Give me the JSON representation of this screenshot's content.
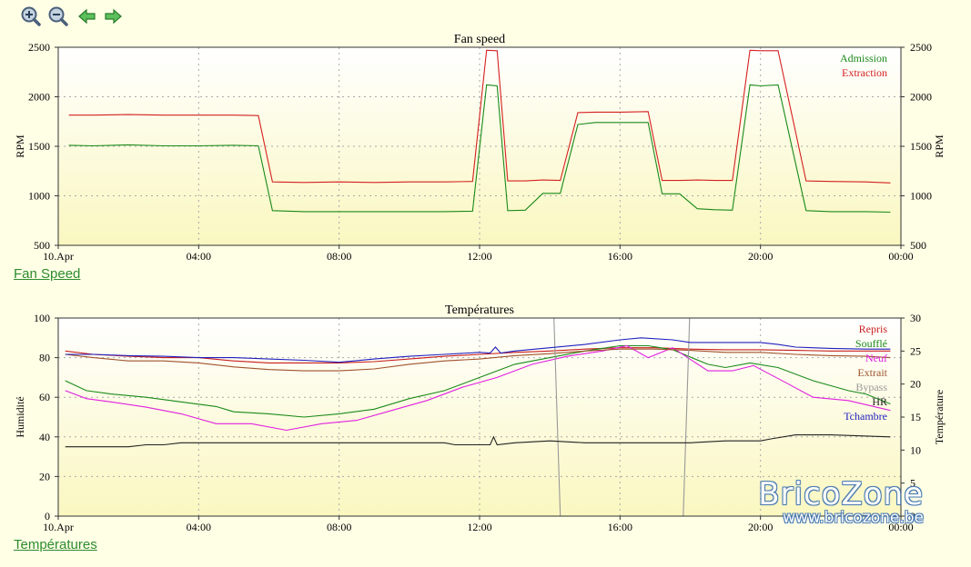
{
  "toolbar": {
    "icons": [
      "zoom-in-icon",
      "zoom-out-icon",
      "arrow-left-icon",
      "arrow-right-icon"
    ]
  },
  "links": {
    "fan_speed": "Fan Speed",
    "temperatures": "Températures"
  },
  "watermark": {
    "brand": "BricoZone",
    "url": "www.bricozone.be"
  },
  "colors": {
    "background": "#ffffe6",
    "plot_gradient_top": "#ffffff",
    "plot_gradient_bottom": "#faf7c0",
    "link": "#2e8b2e"
  },
  "chart_data": [
    {
      "type": "line",
      "title": "Fan speed",
      "xlabel": "",
      "ylabel": "RPM",
      "ylabel_right": "RPM",
      "xlim": [
        0,
        24
      ],
      "ylim": [
        500,
        2500
      ],
      "yticks": [
        500,
        1000,
        1500,
        2000,
        2500
      ],
      "xticks": [
        {
          "x": 0,
          "label": "10.Apr"
        },
        {
          "x": 4,
          "label": "04:00"
        },
        {
          "x": 8,
          "label": "08:00"
        },
        {
          "x": 12,
          "label": "12:00"
        },
        {
          "x": 16,
          "label": "16:00"
        },
        {
          "x": 20,
          "label": "20:00"
        },
        {
          "x": 24,
          "label": "00:00"
        }
      ],
      "grid": true,
      "legend_position": "top-right",
      "series": [
        {
          "name": "Admission",
          "color": "#1a8a1a",
          "points": [
            [
              0.3,
              1510
            ],
            [
              1,
              1505
            ],
            [
              2,
              1515
            ],
            [
              3,
              1505
            ],
            [
              4,
              1505
            ],
            [
              5,
              1510
            ],
            [
              5.7,
              1505
            ],
            [
              6.1,
              850
            ],
            [
              7,
              840
            ],
            [
              8,
              840
            ],
            [
              9,
              840
            ],
            [
              10,
              840
            ],
            [
              11,
              840
            ],
            [
              11.8,
              845
            ],
            [
              12.2,
              2120
            ],
            [
              12.5,
              2110
            ],
            [
              12.8,
              850
            ],
            [
              13.3,
              855
            ],
            [
              13.8,
              1025
            ],
            [
              14.3,
              1025
            ],
            [
              14.8,
              1720
            ],
            [
              15.3,
              1740
            ],
            [
              16,
              1740
            ],
            [
              16.8,
              1740
            ],
            [
              17.2,
              1020
            ],
            [
              17.7,
              1020
            ],
            [
              18.2,
              870
            ],
            [
              18.7,
              860
            ],
            [
              19.2,
              855
            ],
            [
              19.7,
              2120
            ],
            [
              20,
              2110
            ],
            [
              20.5,
              2120
            ],
            [
              21.3,
              850
            ],
            [
              22,
              840
            ],
            [
              23,
              840
            ],
            [
              23.7,
              835
            ]
          ]
        },
        {
          "name": "Extraction",
          "color": "#d42020",
          "points": [
            [
              0.3,
              1815
            ],
            [
              1,
              1815
            ],
            [
              2,
              1820
            ],
            [
              3,
              1815
            ],
            [
              4,
              1815
            ],
            [
              5,
              1815
            ],
            [
              5.7,
              1810
            ],
            [
              6.1,
              1140
            ],
            [
              7,
              1135
            ],
            [
              8,
              1140
            ],
            [
              9,
              1135
            ],
            [
              10,
              1140
            ],
            [
              11,
              1140
            ],
            [
              11.8,
              1145
            ],
            [
              12.2,
              2470
            ],
            [
              12.5,
              2465
            ],
            [
              12.8,
              1150
            ],
            [
              13.3,
              1150
            ],
            [
              13.8,
              1160
            ],
            [
              14.3,
              1155
            ],
            [
              14.8,
              1840
            ],
            [
              15.3,
              1845
            ],
            [
              16,
              1845
            ],
            [
              16.8,
              1850
            ],
            [
              17.2,
              1155
            ],
            [
              17.7,
              1155
            ],
            [
              18.2,
              1160
            ],
            [
              18.7,
              1155
            ],
            [
              19.2,
              1155
            ],
            [
              19.7,
              2470
            ],
            [
              20,
              2465
            ],
            [
              20.5,
              2465
            ],
            [
              21.3,
              1150
            ],
            [
              22,
              1145
            ],
            [
              23,
              1140
            ],
            [
              23.7,
              1130
            ]
          ]
        }
      ]
    },
    {
      "type": "line",
      "title": "Températures",
      "xlabel": "",
      "ylabel": "Humidité",
      "ylabel_right": "Température",
      "xlim": [
        0,
        24
      ],
      "ylim": [
        0,
        100
      ],
      "ylim_right": [
        0,
        30
      ],
      "yticks": [
        0,
        20,
        40,
        60,
        80,
        100
      ],
      "yticks_right": [
        0,
        5,
        10,
        15,
        20,
        25,
        30
      ],
      "xticks": [
        {
          "x": 0,
          "label": "10.Apr"
        },
        {
          "x": 4,
          "label": "04:00"
        },
        {
          "x": 8,
          "label": "08:00"
        },
        {
          "x": 12,
          "label": "12:00"
        },
        {
          "x": 16,
          "label": "16:00"
        },
        {
          "x": 20,
          "label": "20:00"
        },
        {
          "x": 24,
          "label": "00:00"
        }
      ],
      "grid": true,
      "legend_position": "top-right",
      "series": [
        {
          "name": "Repris",
          "color": "#c81e1e",
          "axis": "right",
          "points": [
            [
              0.2,
              25
            ],
            [
              1,
              24.5
            ],
            [
              2,
              24.2
            ],
            [
              3,
              24
            ],
            [
              4,
              24
            ],
            [
              5,
              23.5
            ],
            [
              6,
              23.2
            ],
            [
              7,
              23.2
            ],
            [
              8,
              23.2
            ],
            [
              9,
              23.4
            ],
            [
              10,
              23.8
            ],
            [
              11,
              24.2
            ],
            [
              12,
              24.5
            ],
            [
              13,
              24.8
            ],
            [
              14,
              25
            ],
            [
              15,
              25.3
            ],
            [
              16,
              25.5
            ],
            [
              17,
              25.5
            ],
            [
              18,
              25.3
            ],
            [
              19,
              25.2
            ],
            [
              20,
              25.2
            ],
            [
              21,
              25.1
            ],
            [
              22,
              25
            ],
            [
              23,
              25
            ],
            [
              23.7,
              25
            ]
          ]
        },
        {
          "name": "Soufflé",
          "color": "#1a8a1a",
          "axis": "right",
          "points": [
            [
              0.2,
              20.5
            ],
            [
              0.8,
              19
            ],
            [
              1.5,
              18.5
            ],
            [
              2.5,
              18
            ],
            [
              3.5,
              17.3
            ],
            [
              4.5,
              16.6
            ],
            [
              5,
              15.8
            ],
            [
              6,
              15.5
            ],
            [
              7,
              15
            ],
            [
              8,
              15.5
            ],
            [
              9,
              16.2
            ],
            [
              10,
              17.8
            ],
            [
              11,
              19
            ],
            [
              12,
              21
            ],
            [
              13,
              23
            ],
            [
              14,
              24
            ],
            [
              15,
              25
            ],
            [
              16,
              25.8
            ],
            [
              16.8,
              25.8
            ],
            [
              17.5,
              25.2
            ],
            [
              18.5,
              23
            ],
            [
              19,
              22.5
            ],
            [
              19.7,
              23.2
            ],
            [
              20.5,
              22.5
            ],
            [
              21.5,
              20.5
            ],
            [
              22.5,
              19
            ],
            [
              23,
              18.5
            ],
            [
              23.7,
              17
            ]
          ]
        },
        {
          "name": "Neuf",
          "color": "#e020e0",
          "axis": "right",
          "points": [
            [
              0.2,
              19
            ],
            [
              0.8,
              17.8
            ],
            [
              1.5,
              17.3
            ],
            [
              2.5,
              16.5
            ],
            [
              3.5,
              15.5
            ],
            [
              4.5,
              14
            ],
            [
              5.5,
              14
            ],
            [
              6.5,
              13
            ],
            [
              7.5,
              14
            ],
            [
              8.5,
              14.5
            ],
            [
              9.5,
              16
            ],
            [
              10.5,
              17.5
            ],
            [
              11.5,
              19.5
            ],
            [
              12.5,
              21
            ],
            [
              13.5,
              23
            ],
            [
              14.5,
              24.2
            ],
            [
              15.5,
              25
            ],
            [
              16.2,
              25.8
            ],
            [
              16.8,
              24
            ],
            [
              17.5,
              25.5
            ],
            [
              18.5,
              22
            ],
            [
              19.2,
              22
            ],
            [
              19.8,
              22.8
            ],
            [
              20.8,
              20
            ],
            [
              21.5,
              18
            ],
            [
              22.5,
              17.5
            ],
            [
              23.7,
              16
            ]
          ]
        },
        {
          "name": "Extrait",
          "color": "#a0522d",
          "axis": "right",
          "points": [
            [
              0.2,
              24.5
            ],
            [
              1,
              24
            ],
            [
              2,
              23.5
            ],
            [
              3,
              23.5
            ],
            [
              4,
              23.2
            ],
            [
              5,
              22.6
            ],
            [
              6,
              22.2
            ],
            [
              7,
              22
            ],
            [
              8,
              22
            ],
            [
              9,
              22.3
            ],
            [
              10,
              23
            ],
            [
              11,
              23.5
            ],
            [
              12,
              23.8
            ],
            [
              13,
              24.3
            ],
            [
              14,
              24.6
            ],
            [
              15,
              25
            ],
            [
              16,
              25.3
            ],
            [
              17,
              25.3
            ],
            [
              18,
              25.1
            ],
            [
              19,
              24.8
            ],
            [
              20,
              24.8
            ],
            [
              21,
              24.5
            ],
            [
              22,
              24.3
            ],
            [
              23,
              24.2
            ],
            [
              23.7,
              24
            ]
          ]
        },
        {
          "name": "Bypass",
          "color": "#999999",
          "axis": "left",
          "points": [
            [
              14.1,
              110
            ],
            [
              14.3,
              0
            ],
            [
              17.8,
              0
            ],
            [
              18.0,
              110
            ]
          ]
        },
        {
          "name": "HR",
          "color": "#222222",
          "axis": "left",
          "points": [
            [
              0.2,
              35
            ],
            [
              2,
              35
            ],
            [
              2.5,
              36
            ],
            [
              3,
              36
            ],
            [
              3.5,
              37
            ],
            [
              5,
              37
            ],
            [
              6,
              37
            ],
            [
              9,
              37
            ],
            [
              11,
              37
            ],
            [
              11.3,
              36
            ],
            [
              12,
              36
            ],
            [
              12.3,
              36
            ],
            [
              12.4,
              40
            ],
            [
              12.5,
              36
            ],
            [
              13,
              37
            ],
            [
              14,
              38
            ],
            [
              15,
              37
            ],
            [
              16,
              37
            ],
            [
              17,
              37
            ],
            [
              18,
              37
            ],
            [
              19,
              38
            ],
            [
              20,
              38
            ],
            [
              20.3,
              39
            ],
            [
              21,
              41
            ],
            [
              22,
              41
            ],
            [
              23.7,
              40
            ]
          ]
        },
        {
          "name": "Tchambre",
          "color": "#2020c0",
          "axis": "right",
          "points": [
            [
              0.2,
              24.5
            ],
            [
              1,
              24.5
            ],
            [
              2,
              24.3
            ],
            [
              3,
              24.2
            ],
            [
              4,
              24
            ],
            [
              5,
              24
            ],
            [
              6,
              23.8
            ],
            [
              7,
              23.6
            ],
            [
              8,
              23.3
            ],
            [
              9,
              23.8
            ],
            [
              10,
              24.2
            ],
            [
              11,
              24.5
            ],
            [
              12,
              24.8
            ],
            [
              12.3,
              24.7
            ],
            [
              12.45,
              25.6
            ],
            [
              12.6,
              24.7
            ],
            [
              13,
              25
            ],
            [
              14,
              25.5
            ],
            [
              15,
              26
            ],
            [
              16,
              26.7
            ],
            [
              16.6,
              27
            ],
            [
              17.5,
              26.7
            ],
            [
              18,
              26.3
            ],
            [
              19,
              26.3
            ],
            [
              20,
              26.3
            ],
            [
              20.5,
              26
            ],
            [
              21,
              25.6
            ],
            [
              22,
              25.4
            ],
            [
              23,
              25.3
            ],
            [
              23.7,
              25.3
            ]
          ]
        }
      ]
    }
  ]
}
